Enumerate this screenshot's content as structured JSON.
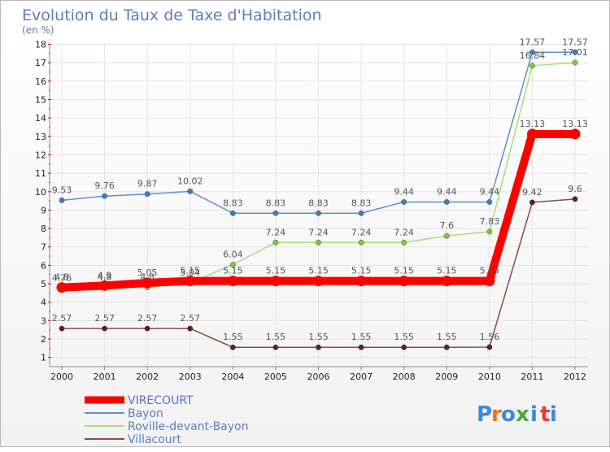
{
  "chart_data": {
    "type": "line",
    "title": "Evolution du Taux de Taxe d'Habitation",
    "subtitle": "(en %)",
    "xlabel": "",
    "ylabel": "(en %)",
    "ylim": [
      0.5,
      18.2
    ],
    "yticks": [
      1,
      2,
      3,
      4,
      5,
      6,
      7,
      8,
      9,
      10,
      11,
      12,
      13,
      14,
      15,
      16,
      17,
      18
    ],
    "categories": [
      "2000",
      "2001",
      "2002",
      "2003",
      "2004",
      "2005",
      "2006",
      "2007",
      "2008",
      "2009",
      "2010",
      "2011",
      "2012"
    ],
    "series": [
      {
        "name": "VIRECOURT",
        "color": "#ff0000",
        "values": [
          4.8,
          4.9,
          5.05,
          5.15,
          5.15,
          5.15,
          5.15,
          5.15,
          5.15,
          5.15,
          5.15,
          13.13,
          13.13
        ],
        "labels": [
          "4.8",
          "4.9",
          "5.05",
          "5.15",
          "5.15",
          "5.15",
          "5.15",
          "5.15",
          "5.15",
          "5.15",
          "5.15",
          "13.13",
          "13.13"
        ]
      },
      {
        "name": "Bayon",
        "color": "#5c8fd0",
        "marker": "#3a7fc0",
        "values": [
          9.53,
          9.76,
          9.87,
          10.02,
          8.83,
          8.83,
          8.83,
          8.83,
          9.44,
          9.44,
          9.44,
          17.57,
          17.57
        ],
        "labels": [
          "9.53",
          "9.76",
          "9.87",
          "10.02",
          "8.83",
          "8.83",
          "8.83",
          "8.83",
          "9.44",
          "9.44",
          "9.44",
          "17.57",
          "17.57"
        ]
      },
      {
        "name": "Roville-devant-Bayon",
        "color": "#a2e07c",
        "marker": "#7cc83c",
        "values": [
          4.76,
          4.8,
          4.8,
          5.04,
          6.04,
          7.24,
          7.24,
          7.24,
          7.24,
          7.6,
          7.83,
          16.84,
          17.01
        ],
        "labels": [
          "4.76",
          "4.8",
          "4.8",
          "5.04",
          "6.04",
          "7.24",
          "7.24",
          "7.24",
          "7.24",
          "7.6",
          "7.83",
          "16.84",
          "17.01"
        ]
      },
      {
        "name": "Villacourt",
        "color": "#8a4a4a",
        "marker": "#6a1a1a",
        "values": [
          2.57,
          2.57,
          2.57,
          2.57,
          1.55,
          1.55,
          1.55,
          1.55,
          1.55,
          1.55,
          1.56,
          9.42,
          9.6
        ],
        "labels": [
          "2.57",
          "2.57",
          "2.57",
          "2.57",
          "1.55",
          "1.55",
          "1.55",
          "1.55",
          "1.55",
          "1.55",
          "1.56",
          "9.42",
          "9.6"
        ]
      }
    ],
    "legend_position": "bottom-left"
  },
  "brand": {
    "parts": [
      "P",
      "r",
      "o",
      "x",
      "i",
      "t",
      "i"
    ],
    "colors": [
      "#3a8ad8",
      "#e8741e",
      "#3a8ad8",
      "#4aa83a",
      "#3a8ad8",
      "#e83a3a",
      "#3a8ad8"
    ]
  }
}
